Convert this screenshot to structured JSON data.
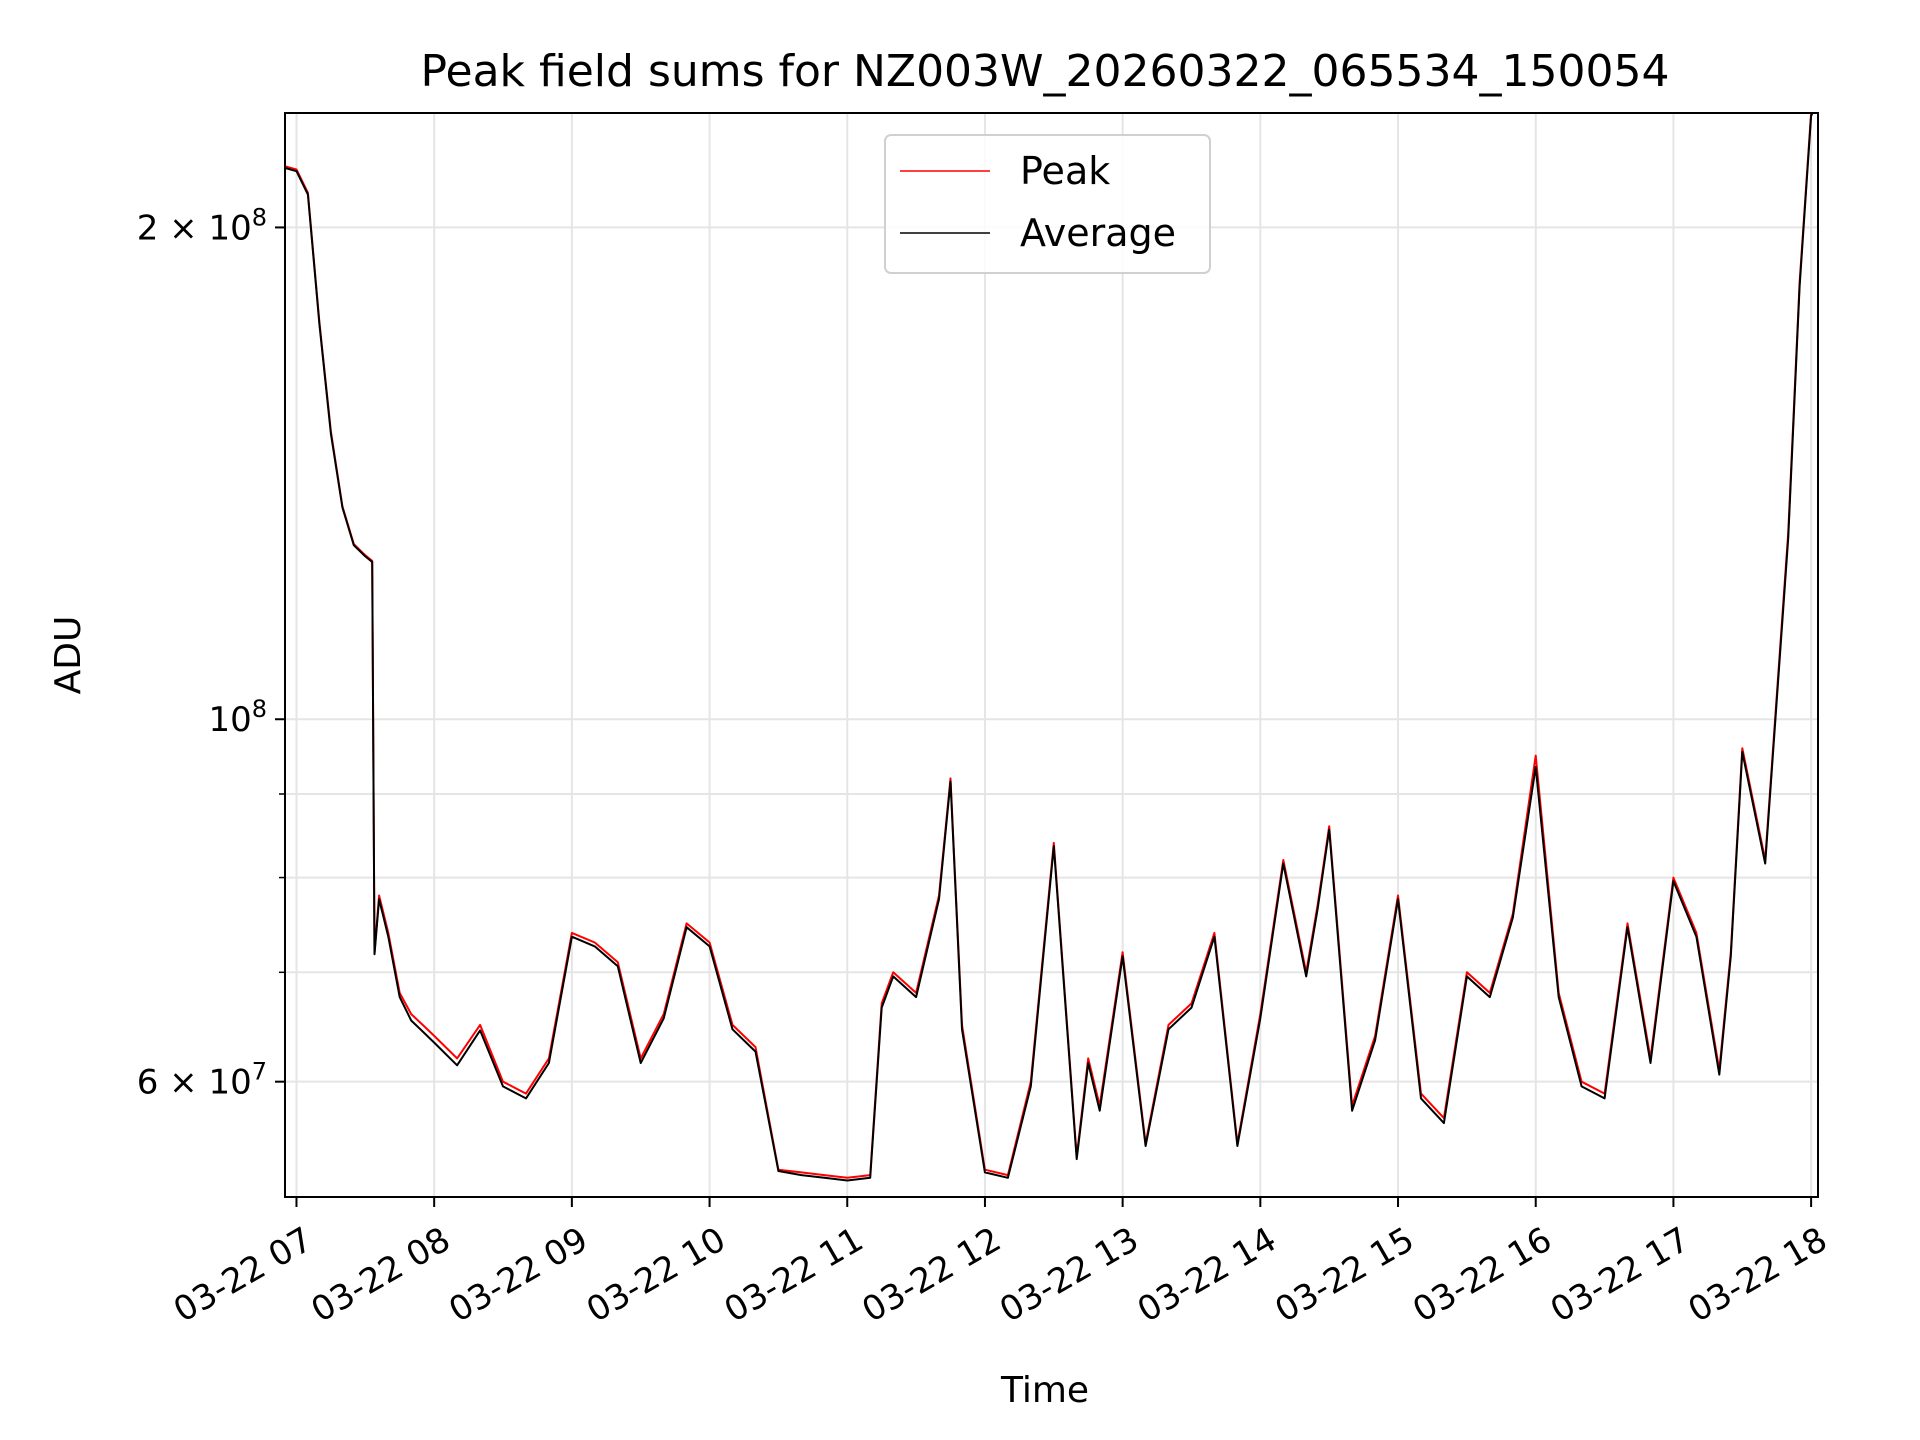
{
  "chart_data": {
    "type": "line",
    "title": "Peak field sums for NZ003W_20260322_065534_150054",
    "xlabel": "Time",
    "ylabel": "ADU",
    "yscale": "log",
    "ylim": [
      51000000,
      235000000
    ],
    "xlim": [
      "03-22 06:55",
      "03-22 18:03"
    ],
    "grid": true,
    "legend": "upper-center",
    "x_ticks": [
      "03-22 07",
      "03-22 08",
      "03-22 09",
      "03-22 10",
      "03-22 11",
      "03-22 12",
      "03-22 13",
      "03-22 14",
      "03-22 15",
      "03-22 16",
      "03-22 17",
      "03-22 18"
    ],
    "y_ticks": [
      {
        "value": 60000000,
        "mantissa": "6",
        "exponent": "7"
      },
      {
        "value": 100000000,
        "mantissa": "",
        "exponent": "8"
      },
      {
        "value": 200000000,
        "mantissa": "2",
        "exponent": "8"
      }
    ],
    "x": [
      "06:55",
      "07:00",
      "07:05",
      "07:10",
      "07:15",
      "07:20",
      "07:25",
      "07:30",
      "07:33",
      "07:34",
      "07:36",
      "07:40",
      "07:45",
      "07:50",
      "07:55",
      "08:00",
      "08:10",
      "08:20",
      "08:30",
      "08:40",
      "08:50",
      "09:00",
      "09:10",
      "09:20",
      "09:30",
      "09:40",
      "09:50",
      "10:00",
      "10:10",
      "10:20",
      "10:30",
      "10:40",
      "10:50",
      "11:00",
      "11:10",
      "11:15",
      "11:20",
      "11:30",
      "11:40",
      "11:45",
      "11:50",
      "12:00",
      "12:10",
      "12:20",
      "12:30",
      "12:40",
      "12:45",
      "12:50",
      "13:00",
      "13:10",
      "13:20",
      "13:30",
      "13:40",
      "13:50",
      "14:00",
      "14:10",
      "14:20",
      "14:25",
      "14:30",
      "14:40",
      "14:50",
      "15:00",
      "15:10",
      "15:20",
      "15:30",
      "15:40",
      "15:50",
      "16:00",
      "16:10",
      "16:20",
      "16:30",
      "16:40",
      "16:50",
      "17:00",
      "17:10",
      "17:20",
      "17:25",
      "17:30",
      "17:40",
      "17:50",
      "17:55",
      "18:00",
      "18:03"
    ],
    "series": [
      {
        "name": "Peak",
        "color": "#ff0000",
        "values": [
          218000000,
          217000000,
          210000000,
          175000000,
          150000000,
          135000000,
          128000000,
          126000000,
          125000000,
          72000000,
          78000000,
          74000000,
          68000000,
          66000000,
          65000000,
          64000000,
          62000000,
          65000000,
          60000000,
          59000000,
          62000000,
          74000000,
          73000000,
          71000000,
          62000000,
          66000000,
          75000000,
          73000000,
          65000000,
          63000000,
          53000000,
          52800000,
          52600000,
          52400000,
          52600000,
          67000000,
          70000000,
          68000000,
          78000000,
          92000000,
          65000000,
          53000000,
          52600000,
          60000000,
          84000000,
          54000000,
          62000000,
          58000000,
          72000000,
          55000000,
          65000000,
          67000000,
          74000000,
          55000000,
          66000000,
          82000000,
          70000000,
          77000000,
          86000000,
          58000000,
          64000000,
          78000000,
          59000000,
          57000000,
          70000000,
          68000000,
          76000000,
          95000000,
          68000000,
          60000000,
          59000000,
          75000000,
          62000000,
          80000000,
          74000000,
          61000000,
          72000000,
          96000000,
          82000000,
          130000000,
          185000000,
          235000000,
          240000000
        ]
      },
      {
        "name": "Average",
        "color": "#000000",
        "values": [
          217500000,
          216500000,
          209500000,
          174500000,
          149500000,
          134800000,
          127800000,
          125800000,
          124800000,
          71800000,
          77600000,
          73600000,
          67600000,
          65400000,
          64400000,
          63400000,
          61400000,
          64500000,
          59600000,
          58600000,
          61600000,
          73600000,
          72600000,
          70600000,
          61600000,
          65600000,
          74600000,
          72600000,
          64600000,
          62600000,
          52900000,
          52600000,
          52400000,
          52200000,
          52400000,
          66600000,
          69600000,
          67600000,
          77600000,
          91600000,
          64600000,
          52800000,
          52400000,
          59600000,
          83600000,
          53800000,
          61600000,
          57600000,
          71600000,
          54800000,
          64600000,
          66600000,
          73600000,
          54800000,
          65600000,
          81600000,
          69600000,
          76600000,
          85600000,
          57600000,
          63600000,
          77600000,
          58600000,
          56600000,
          69600000,
          67600000,
          75600000,
          93500000,
          67600000,
          59600000,
          58600000,
          74600000,
          61600000,
          79600000,
          73600000,
          60600000,
          71600000,
          95500000,
          81600000,
          129000000,
          184000000,
          234000000,
          239000000
        ]
      }
    ]
  }
}
